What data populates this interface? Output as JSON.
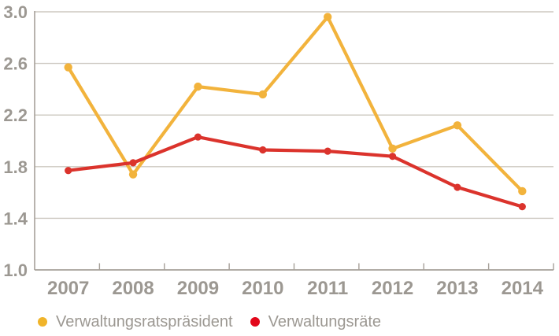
{
  "chart_data": {
    "type": "line",
    "categories": [
      "2007",
      "2008",
      "2009",
      "2010",
      "2011",
      "2012",
      "2013",
      "2014"
    ],
    "series": [
      {
        "name": "Verwaltungsratspräsident",
        "color": "#F2B33C",
        "dot_color": "#F0B42A",
        "values": [
          2.57,
          1.74,
          2.42,
          2.36,
          2.96,
          1.94,
          2.12,
          1.61
        ]
      },
      {
        "name": "Verwaltungsräte",
        "color": "#DB332C",
        "dot_color": "#E2071A",
        "values": [
          1.77,
          1.83,
          2.03,
          1.93,
          1.92,
          1.88,
          1.64,
          1.49
        ]
      }
    ],
    "title": "",
    "xlabel": "",
    "ylabel": "",
    "ylim": [
      1.0,
      3.0
    ],
    "y_ticks": [
      "3.0",
      "2.6",
      "2.2",
      "1.8",
      "1.4",
      "1.0"
    ],
    "y_tick_values": [
      3.0,
      2.6,
      2.2,
      1.8,
      1.4,
      1.0
    ],
    "grid": true,
    "legend_position": "bottom"
  },
  "colors": {
    "background": "#FFFFFF",
    "grid_line": "#CDC8C1",
    "axis_line": "#A6A099",
    "tick_mark": "#A6A099",
    "axis_label_text": "#9C9892",
    "legend_text": "#9C9892"
  }
}
